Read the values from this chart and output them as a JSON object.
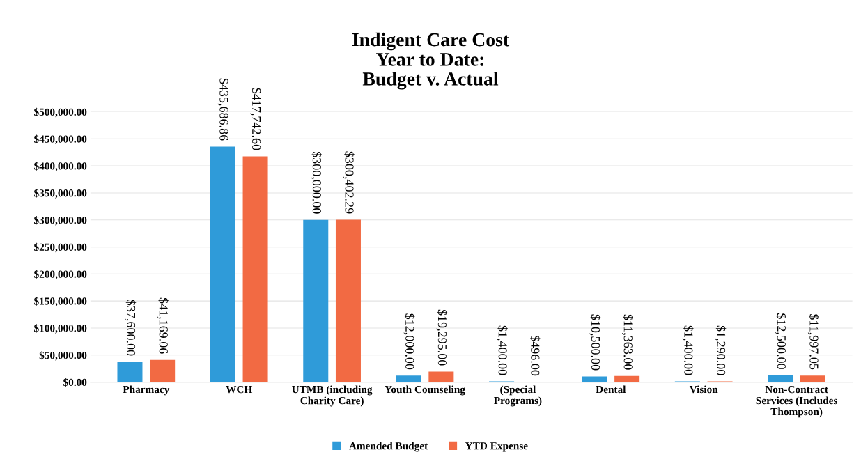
{
  "chart_data": {
    "type": "bar",
    "title": "Indigent Care Cost\nYear to Date:\nBudget v. Actual",
    "categories": [
      "Pharmacy",
      "WCH",
      "UTMB (including\nCharity Care)",
      "Youth Counseling",
      "(Special\nPrograms)",
      "Dental",
      "Vision",
      "Non-Contract\nServices (Includes\nThompson)"
    ],
    "series": [
      {
        "name": "Amended Budget",
        "color": "#2f9bd9",
        "values": [
          37600.0,
          435686.86,
          300000.0,
          12000.0,
          1400.0,
          10500.0,
          1400.0,
          12500.0
        ],
        "value_labels": [
          "$37,600.00",
          "$435,686.86",
          "$300,000.00",
          "$12,000.00",
          "$1,400.00",
          "$10,500.00",
          "$1,400.00",
          "$12,500.00"
        ]
      },
      {
        "name": "YTD Expense",
        "color": "#f26a43",
        "values": [
          41169.06,
          417742.6,
          300402.29,
          19295.0,
          496.0,
          11363.0,
          1290.0,
          11997.05
        ],
        "value_labels": [
          "$41,169.06",
          "$417,742.60",
          "$300,402.29",
          "$19,295.00",
          "$496.00",
          "$11,363.00",
          "$1,290.00",
          "$11,997.05"
        ]
      }
    ],
    "ylim": [
      0,
      500000
    ],
    "yticks": [
      {
        "value": 0,
        "label": "$0.00"
      },
      {
        "value": 50000,
        "label": "$50,000.00"
      },
      {
        "value": 100000,
        "label": "$100,000.00"
      },
      {
        "value": 150000,
        "label": "$150,000.00"
      },
      {
        "value": 200000,
        "label": "$200,000.00"
      },
      {
        "value": 250000,
        "label": "$250,000.00"
      },
      {
        "value": 300000,
        "label": "$300,000.00"
      },
      {
        "value": 350000,
        "label": "$350,000.00"
      },
      {
        "value": 400000,
        "label": "$400,000.00"
      },
      {
        "value": 450000,
        "label": "$450,000.00"
      },
      {
        "value": 500000,
        "label": "$500,000.00"
      }
    ],
    "grid": "y",
    "legend": "bottom"
  }
}
